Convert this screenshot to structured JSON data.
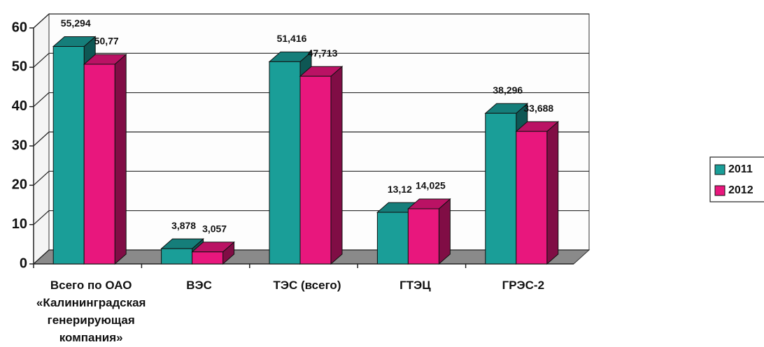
{
  "chart_data": {
    "type": "bar3d",
    "categories": [
      "Всего по ОАО «Калининградская генерирующая компания»",
      "ВЭС",
      "ТЭС (всего)",
      "ГТЭЦ",
      "ГРЭС-2"
    ],
    "series": [
      {
        "name": "2011",
        "color": "#1a9e98",
        "values": [
          55.294,
          3.878,
          51.416,
          13.12,
          38.296
        ],
        "value_labels": [
          "55,294",
          "3,878",
          "51,416",
          "13,12",
          "38,296"
        ]
      },
      {
        "name": "2012",
        "color": "#e8177d",
        "values": [
          50.77,
          3.057,
          47.713,
          14.025,
          33.688
        ],
        "value_labels": [
          "50,77",
          "3,057",
          "47,713",
          "14,025",
          "33,688"
        ]
      }
    ],
    "ylim": [
      0,
      60
    ],
    "yticks": [
      0,
      10,
      20,
      30,
      40,
      50,
      60
    ],
    "grid": true,
    "legend": "right"
  }
}
